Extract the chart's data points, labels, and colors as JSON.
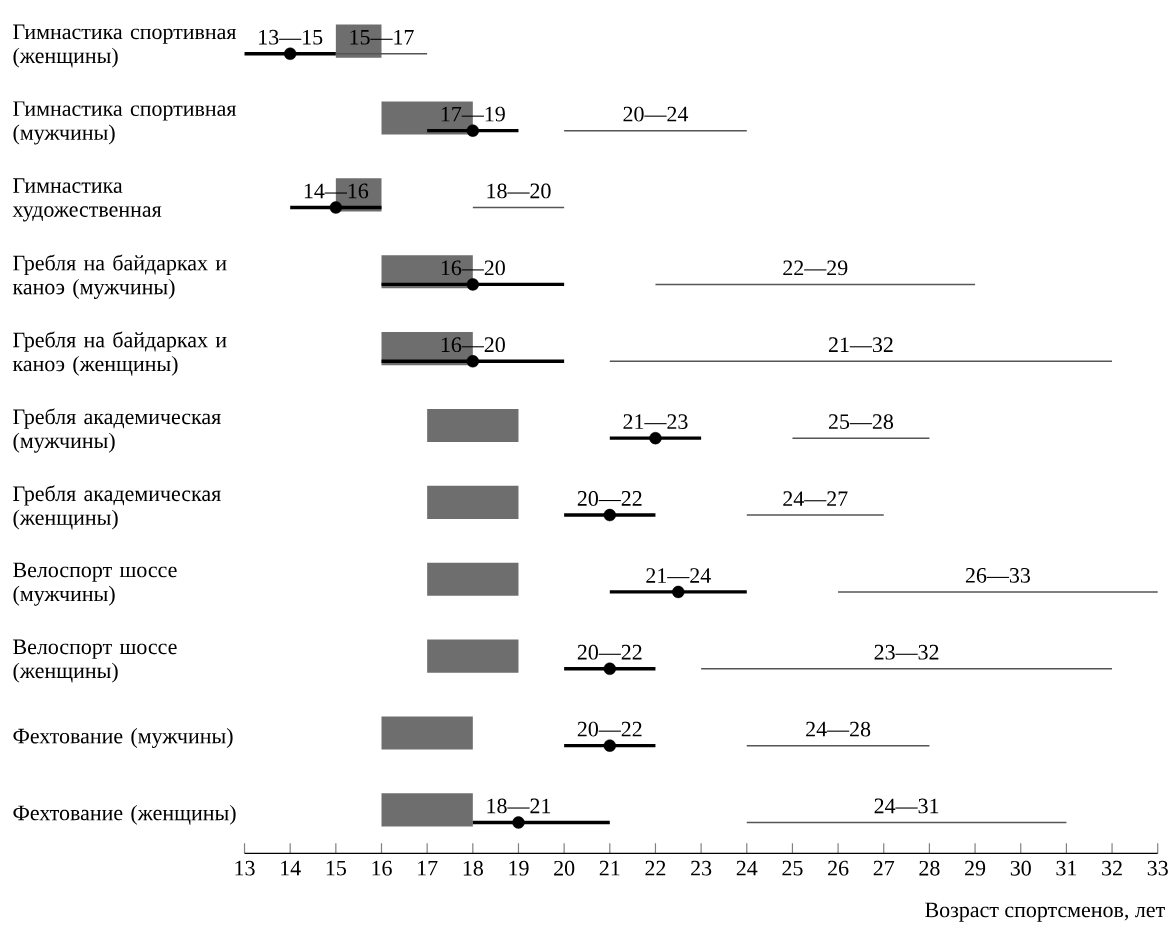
{
  "chart_data": {
    "type": "bar",
    "orientation": "horizontal",
    "xlabel": "Возраст спортсменов, лет",
    "categories": [
      "Гимнастика спортивная (женщины)",
      "Гимнастика спортивная (мужчины)",
      "Гимнастика художественная",
      "Гребля на байдарках и каноэ (мужчины)",
      "Гребля на байдарках и каноэ (женщины)",
      "Гребля академическая (мужчины)",
      "Гребля академическая (женщины)",
      "Велоспорт шоссе (мужчины)",
      "Велоспорт шоссе (женщины)",
      "Фехтование (мужчины)",
      "Фехтование (женщины)"
    ],
    "xlim": [
      13,
      33
    ],
    "xticks": [
      13,
      14,
      15,
      16,
      17,
      18,
      19,
      20,
      21,
      22,
      23,
      24,
      25,
      26,
      27,
      28,
      29,
      30,
      31,
      32,
      33
    ],
    "series": [
      {
        "color": "#6e6e6e",
        "base": [
          15,
          16,
          15,
          16,
          16,
          17,
          17,
          17,
          17,
          16,
          16
        ],
        "values": [
          1,
          2,
          1,
          2,
          2,
          2,
          2,
          2,
          2,
          2,
          2
        ]
      },
      {
        "color": "#000000",
        "base": [
          13,
          17,
          14,
          16,
          16,
          21,
          20,
          21,
          20,
          20,
          18
        ],
        "values": [
          2,
          2,
          2,
          4,
          4,
          2,
          2,
          3,
          2,
          2,
          3
        ]
      },
      {
        "type": "scatter",
        "color": "#000000",
        "marker": "circle",
        "values": [
          14,
          18,
          15,
          18,
          18,
          22,
          21,
          22.5,
          21,
          21,
          19
        ]
      },
      {
        "color": "#555555",
        "base": [
          15,
          20,
          18,
          22,
          21,
          25,
          24,
          26,
          23,
          24,
          24
        ],
        "values": [
          2,
          4,
          2,
          7,
          11,
          3,
          3,
          7,
          9,
          4,
          7
        ]
      }
    ],
    "annotations": [
      {
        "text": "13—15",
        "x": 14,
        "y": "Гимнастика спортивная (женщины)"
      },
      {
        "text": "17—19",
        "x": 18,
        "y": "Гимнастика спортивная (мужчины)"
      },
      {
        "text": "14—16",
        "x": 15,
        "y": "Гимнастика художественная"
      },
      {
        "text": "16—20",
        "x": 18,
        "y": "Гребля на байдарках и каноэ (мужчины)"
      },
      {
        "text": "16—20",
        "x": 18,
        "y": "Гребля на байдарках и каноэ (женщины)"
      },
      {
        "text": "21—23",
        "x": 22,
        "y": "Гребля академическая (мужчины)"
      },
      {
        "text": "20—22",
        "x": 21,
        "y": "Гребля академическая (женщины)"
      },
      {
        "text": "21—24",
        "x": 22.5,
        "y": "Велоспорт шоссе (мужчины)"
      },
      {
        "text": "20—22",
        "x": 21,
        "y": "Велоспорт шоссе (женщины)"
      },
      {
        "text": "20—22",
        "x": 21,
        "y": "Фехтование (мужчины)"
      },
      {
        "text": "18—21",
        "x": 19,
        "y": "Фехтование (женщины)"
      },
      "15—17",
      "20—24",
      "18—20",
      "22—29",
      "21—32",
      "25—28",
      "24—27",
      "26—33",
      "23—32",
      "24—28",
      "24—31"
    ]
  }
}
